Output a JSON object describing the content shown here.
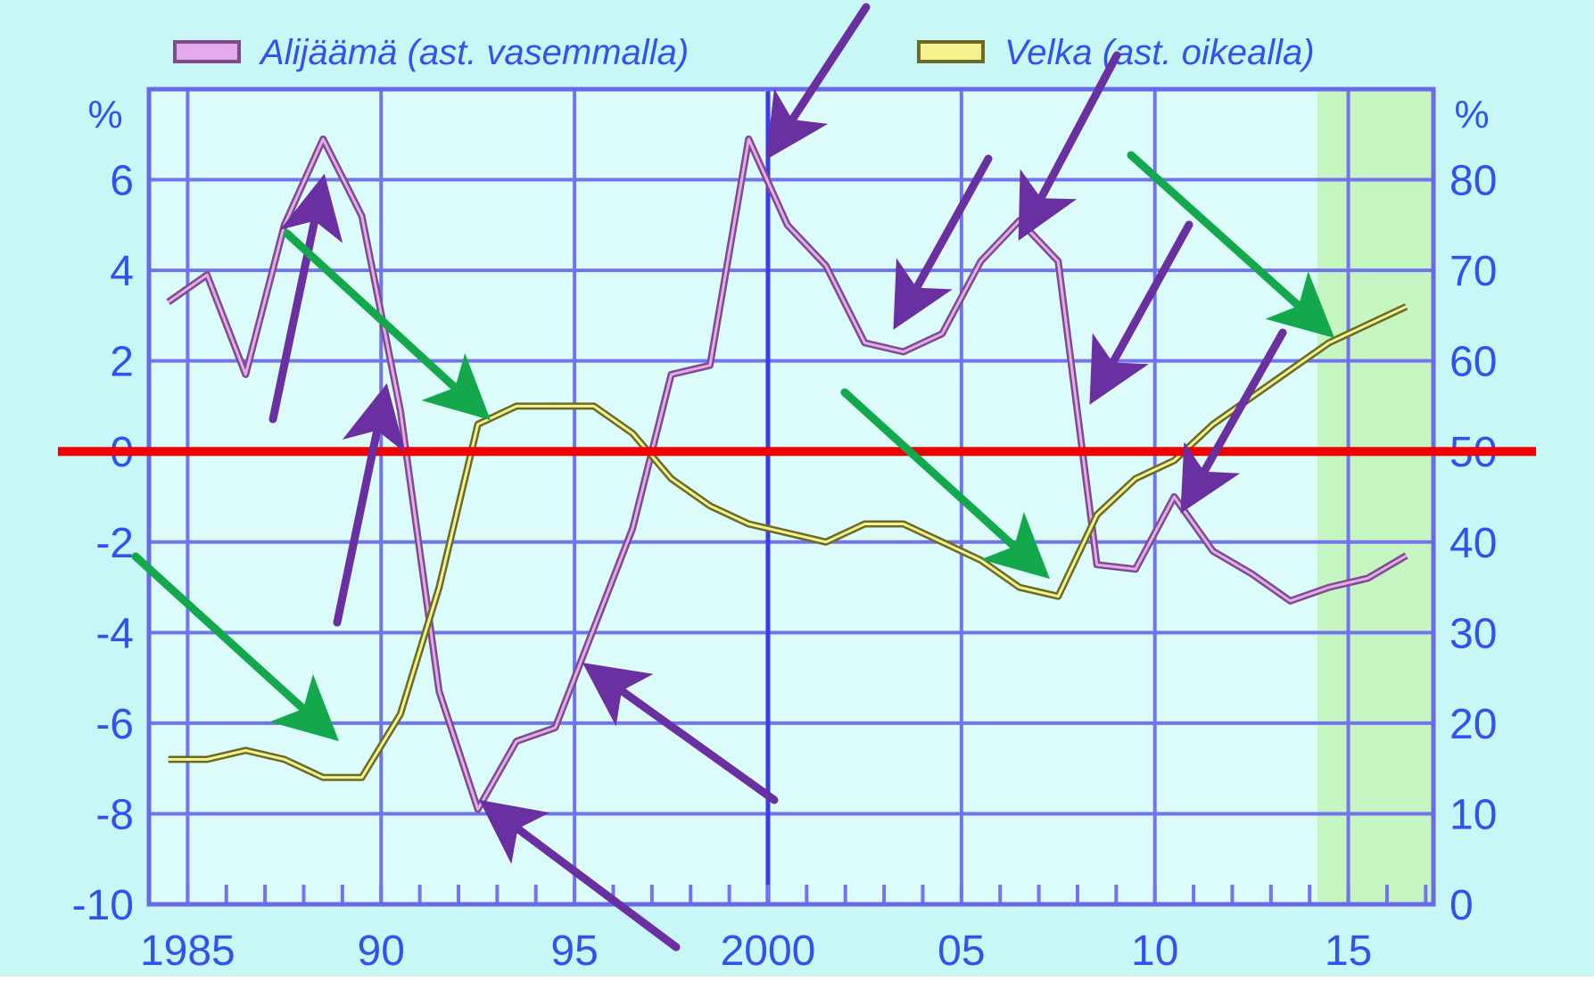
{
  "chart_data": {
    "type": "line",
    "title": "",
    "y_left_unit": "%",
    "y_right_unit": "%",
    "x_ticks": [
      {
        "x": 1985,
        "label": "1985"
      },
      {
        "x": 1990,
        "label": "90"
      },
      {
        "x": 1995,
        "label": "95"
      },
      {
        "x": 2000,
        "label": "2000"
      },
      {
        "x": 2005,
        "label": "05"
      },
      {
        "x": 2010,
        "label": "10"
      },
      {
        "x": 2015,
        "label": "15"
      }
    ],
    "y_left_ticks": [
      {
        "v": 6,
        "label": "6"
      },
      {
        "v": 4,
        "label": "4"
      },
      {
        "v": 2,
        "label": "2"
      },
      {
        "v": 0,
        "label": "0"
      },
      {
        "v": -2,
        "label": "-2"
      },
      {
        "v": -4,
        "label": "-4"
      },
      {
        "v": -6,
        "label": "-6"
      },
      {
        "v": -8,
        "label": "-8"
      },
      {
        "v": -10,
        "label": "-10"
      }
    ],
    "y_right_ticks": [
      {
        "v": 80,
        "label": "80"
      },
      {
        "v": 70,
        "label": "70"
      },
      {
        "v": 60,
        "label": "60"
      },
      {
        "v": 50,
        "label": "50"
      },
      {
        "v": 40,
        "label": "40"
      },
      {
        "v": 30,
        "label": "30"
      },
      {
        "v": 20,
        "label": "20"
      },
      {
        "v": 10,
        "label": "10"
      },
      {
        "v": 0,
        "label": "0"
      }
    ],
    "xlim": [
      1984.0,
      2017.2
    ],
    "ylim_left": [
      -10,
      8
    ],
    "ylim_right": [
      0,
      90
    ],
    "grid": true,
    "legend_position": "top",
    "forecast_shading": {
      "from": 2014.2,
      "to": 2017.2
    },
    "reference_line": {
      "axis": "left",
      "value": 0
    },
    "series": [
      {
        "name": "Alijäämä (ast. vasemmalla)",
        "axis": "left",
        "x": [
          1984.5,
          1985.5,
          1986.5,
          1987.5,
          1988.5,
          1989.5,
          1990.5,
          1991.5,
          1992.5,
          1993.5,
          1994.5,
          1995.5,
          1996.5,
          1997.5,
          1998.5,
          1999.5,
          2000.5,
          2001.5,
          2002.5,
          2003.5,
          2004.5,
          2005.5,
          2006.5,
          2007.5,
          2008.5,
          2009.5,
          2010.5,
          2011.5,
          2012.5,
          2013.5,
          2014.5,
          2015.5,
          2016.5
        ],
        "values": [
          3.3,
          3.9,
          1.7,
          5.0,
          6.9,
          5.2,
          0.9,
          -5.3,
          -7.9,
          -6.4,
          -6.1,
          -3.9,
          -1.7,
          1.7,
          1.9,
          6.9,
          5.0,
          4.1,
          2.4,
          2.2,
          2.6,
          4.2,
          5.1,
          4.2,
          -2.5,
          -2.6,
          -1.0,
          -2.2,
          -2.7,
          -3.3,
          -3.0,
          -2.8,
          -2.3
        ]
      },
      {
        "name": "Velka (ast. oikealla)",
        "axis": "right",
        "x": [
          1984.5,
          1985.5,
          1986.5,
          1987.5,
          1988.5,
          1989.5,
          1990.5,
          1991.5,
          1992.5,
          1993.5,
          1994.5,
          1995.5,
          1996.5,
          1997.5,
          1998.5,
          1999.5,
          2000.5,
          2001.5,
          2002.5,
          2003.5,
          2004.5,
          2005.5,
          2006.5,
          2007.5,
          2008.5,
          2009.5,
          2010.5,
          2011.5,
          2012.5,
          2013.5,
          2014.5,
          2015.5,
          2016.5
        ],
        "values": [
          16,
          16,
          17,
          16,
          14,
          14,
          21,
          35,
          53,
          55,
          55,
          55,
          52,
          47,
          44,
          42,
          41,
          40,
          42,
          42,
          40,
          38,
          35,
          34,
          43,
          47,
          49,
          53,
          56,
          59,
          62,
          64,
          66
        ]
      }
    ]
  },
  "legend": {
    "items": [
      {
        "label": "Alijäämä (ast. vasemmalla)",
        "color": "#b77fcf",
        "inner": "#e7a9ee"
      },
      {
        "label": "Velka (ast. oikealla)",
        "color": "#9d9a3c",
        "inner": "#f5f28d"
      }
    ]
  },
  "colors": {
    "plot_background": "#dcfcfc",
    "outer_background": "#c9f7f7",
    "grid": "#7373ee",
    "axis_text": "#2f52f0",
    "forecast_fill": "#c5f5c0",
    "reference_line": "#f00000",
    "annotation_purple": "#6a2fa0",
    "annotation_green": "#13a84c"
  }
}
